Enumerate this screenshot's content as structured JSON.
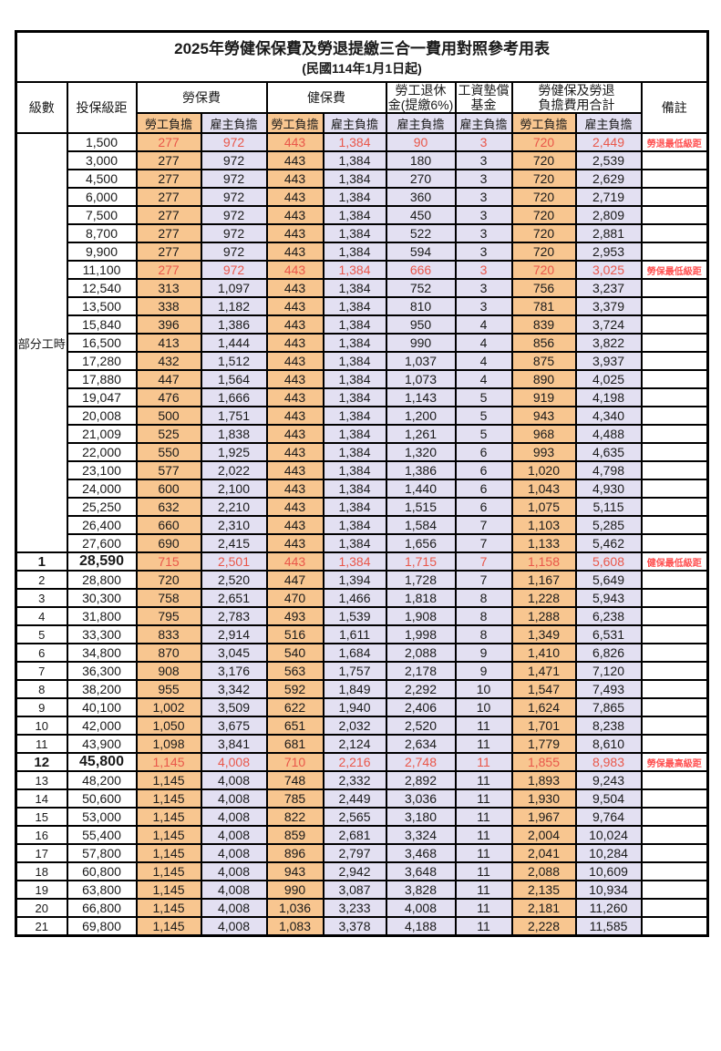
{
  "title": "2025年勞健保保費及勞退提繳三合一費用對照參考用表",
  "subtitle": "(民國114年1月1日起)",
  "colors": {
    "employee_burden_bg": "#F8C690",
    "employer_burden_bg": "#E3E0F2",
    "highlight_number_text": "#E9574A",
    "remark_text": "#FF5050",
    "border": "#000000"
  },
  "header": {
    "level": "級數",
    "bracket": "投保級距",
    "labor_insurance": "勞保費",
    "health_insurance": "健保費",
    "pension_line1": "勞工退休",
    "pension_line2": "金(提繳6%)",
    "wage_fund_line1": "工資墊償",
    "wage_fund_line2": "基金",
    "total_line1": "勞健保及勞退",
    "total_line2": "負擔費用合計",
    "remark": "備註",
    "employee": "勞工負擔",
    "employer": "雇主負擔"
  },
  "part_time": {
    "label": "部分工時",
    "rows": [
      {
        "bracket": "1,500",
        "values": [
          "277",
          "972",
          "443",
          "1,384",
          "90",
          "3",
          "720",
          "2,449"
        ],
        "remark": "勞退最低級距",
        "highlight": true
      },
      {
        "bracket": "3,000",
        "values": [
          "277",
          "972",
          "443",
          "1,384",
          "180",
          "3",
          "720",
          "2,539"
        ],
        "remark": ""
      },
      {
        "bracket": "4,500",
        "values": [
          "277",
          "972",
          "443",
          "1,384",
          "270",
          "3",
          "720",
          "2,629"
        ],
        "remark": ""
      },
      {
        "bracket": "6,000",
        "values": [
          "277",
          "972",
          "443",
          "1,384",
          "360",
          "3",
          "720",
          "2,719"
        ],
        "remark": ""
      },
      {
        "bracket": "7,500",
        "values": [
          "277",
          "972",
          "443",
          "1,384",
          "450",
          "3",
          "720",
          "2,809"
        ],
        "remark": ""
      },
      {
        "bracket": "8,700",
        "values": [
          "277",
          "972",
          "443",
          "1,384",
          "522",
          "3",
          "720",
          "2,881"
        ],
        "remark": ""
      },
      {
        "bracket": "9,900",
        "values": [
          "277",
          "972",
          "443",
          "1,384",
          "594",
          "3",
          "720",
          "2,953"
        ],
        "remark": ""
      },
      {
        "bracket": "11,100",
        "values": [
          "277",
          "972",
          "443",
          "1,384",
          "666",
          "3",
          "720",
          "3,025"
        ],
        "remark": "勞保最低級距",
        "highlight": true
      },
      {
        "bracket": "12,540",
        "values": [
          "313",
          "1,097",
          "443",
          "1,384",
          "752",
          "3",
          "756",
          "3,237"
        ],
        "remark": ""
      },
      {
        "bracket": "13,500",
        "values": [
          "338",
          "1,182",
          "443",
          "1,384",
          "810",
          "3",
          "781",
          "3,379"
        ],
        "remark": ""
      },
      {
        "bracket": "15,840",
        "values": [
          "396",
          "1,386",
          "443",
          "1,384",
          "950",
          "4",
          "839",
          "3,724"
        ],
        "remark": ""
      },
      {
        "bracket": "16,500",
        "values": [
          "413",
          "1,444",
          "443",
          "1,384",
          "990",
          "4",
          "856",
          "3,822"
        ],
        "remark": ""
      },
      {
        "bracket": "17,280",
        "values": [
          "432",
          "1,512",
          "443",
          "1,384",
          "1,037",
          "4",
          "875",
          "3,937"
        ],
        "remark": ""
      },
      {
        "bracket": "17,880",
        "values": [
          "447",
          "1,564",
          "443",
          "1,384",
          "1,073",
          "4",
          "890",
          "4,025"
        ],
        "remark": ""
      },
      {
        "bracket": "19,047",
        "values": [
          "476",
          "1,666",
          "443",
          "1,384",
          "1,143",
          "5",
          "919",
          "4,198"
        ],
        "remark": ""
      },
      {
        "bracket": "20,008",
        "values": [
          "500",
          "1,751",
          "443",
          "1,384",
          "1,200",
          "5",
          "943",
          "4,340"
        ],
        "remark": ""
      },
      {
        "bracket": "21,009",
        "values": [
          "525",
          "1,838",
          "443",
          "1,384",
          "1,261",
          "5",
          "968",
          "4,488"
        ],
        "remark": ""
      },
      {
        "bracket": "22,000",
        "values": [
          "550",
          "1,925",
          "443",
          "1,384",
          "1,320",
          "6",
          "993",
          "4,635"
        ],
        "remark": ""
      },
      {
        "bracket": "23,100",
        "values": [
          "577",
          "2,022",
          "443",
          "1,384",
          "1,386",
          "6",
          "1,020",
          "4,798"
        ],
        "remark": ""
      },
      {
        "bracket": "24,000",
        "values": [
          "600",
          "2,100",
          "443",
          "1,384",
          "1,440",
          "6",
          "1,043",
          "4,930"
        ],
        "remark": ""
      },
      {
        "bracket": "25,250",
        "values": [
          "632",
          "2,210",
          "443",
          "1,384",
          "1,515",
          "6",
          "1,075",
          "5,115"
        ],
        "remark": ""
      },
      {
        "bracket": "26,400",
        "values": [
          "660",
          "2,310",
          "443",
          "1,384",
          "1,584",
          "7",
          "1,103",
          "5,285"
        ],
        "remark": ""
      },
      {
        "bracket": "27,600",
        "values": [
          "690",
          "2,415",
          "443",
          "1,384",
          "1,656",
          "7",
          "1,133",
          "5,462"
        ],
        "remark": ""
      }
    ]
  },
  "levels": {
    "rows": [
      {
        "level": "1",
        "bracket": "28,590",
        "values": [
          "715",
          "2,501",
          "443",
          "1,384",
          "1,715",
          "7",
          "1,158",
          "5,608"
        ],
        "remark": "健保最低級距",
        "highlight": true,
        "emphasis": true
      },
      {
        "level": "2",
        "bracket": "28,800",
        "values": [
          "720",
          "2,520",
          "447",
          "1,394",
          "1,728",
          "7",
          "1,167",
          "5,649"
        ],
        "remark": ""
      },
      {
        "level": "3",
        "bracket": "30,300",
        "values": [
          "758",
          "2,651",
          "470",
          "1,466",
          "1,818",
          "8",
          "1,228",
          "5,943"
        ],
        "remark": ""
      },
      {
        "level": "4",
        "bracket": "31,800",
        "values": [
          "795",
          "2,783",
          "493",
          "1,539",
          "1,908",
          "8",
          "1,288",
          "6,238"
        ],
        "remark": ""
      },
      {
        "level": "5",
        "bracket": "33,300",
        "values": [
          "833",
          "2,914",
          "516",
          "1,611",
          "1,998",
          "8",
          "1,349",
          "6,531"
        ],
        "remark": ""
      },
      {
        "level": "6",
        "bracket": "34,800",
        "values": [
          "870",
          "3,045",
          "540",
          "1,684",
          "2,088",
          "9",
          "1,410",
          "6,826"
        ],
        "remark": ""
      },
      {
        "level": "7",
        "bracket": "36,300",
        "values": [
          "908",
          "3,176",
          "563",
          "1,757",
          "2,178",
          "9",
          "1,471",
          "7,120"
        ],
        "remark": ""
      },
      {
        "level": "8",
        "bracket": "38,200",
        "values": [
          "955",
          "3,342",
          "592",
          "1,849",
          "2,292",
          "10",
          "1,547",
          "7,493"
        ],
        "remark": ""
      },
      {
        "level": "9",
        "bracket": "40,100",
        "values": [
          "1,002",
          "3,509",
          "622",
          "1,940",
          "2,406",
          "10",
          "1,624",
          "7,865"
        ],
        "remark": ""
      },
      {
        "level": "10",
        "bracket": "42,000",
        "values": [
          "1,050",
          "3,675",
          "651",
          "2,032",
          "2,520",
          "11",
          "1,701",
          "8,238"
        ],
        "remark": ""
      },
      {
        "level": "11",
        "bracket": "43,900",
        "values": [
          "1,098",
          "3,841",
          "681",
          "2,124",
          "2,634",
          "11",
          "1,779",
          "8,610"
        ],
        "remark": ""
      },
      {
        "level": "12",
        "bracket": "45,800",
        "values": [
          "1,145",
          "4,008",
          "710",
          "2,216",
          "2,748",
          "11",
          "1,855",
          "8,983"
        ],
        "remark": "勞保最高級距",
        "highlight": true,
        "emphasis": true
      },
      {
        "level": "13",
        "bracket": "48,200",
        "values": [
          "1,145",
          "4,008",
          "748",
          "2,332",
          "2,892",
          "11",
          "1,893",
          "9,243"
        ],
        "remark": ""
      },
      {
        "level": "14",
        "bracket": "50,600",
        "values": [
          "1,145",
          "4,008",
          "785",
          "2,449",
          "3,036",
          "11",
          "1,930",
          "9,504"
        ],
        "remark": ""
      },
      {
        "level": "15",
        "bracket": "53,000",
        "values": [
          "1,145",
          "4,008",
          "822",
          "2,565",
          "3,180",
          "11",
          "1,967",
          "9,764"
        ],
        "remark": ""
      },
      {
        "level": "16",
        "bracket": "55,400",
        "values": [
          "1,145",
          "4,008",
          "859",
          "2,681",
          "3,324",
          "11",
          "2,004",
          "10,024"
        ],
        "remark": ""
      },
      {
        "level": "17",
        "bracket": "57,800",
        "values": [
          "1,145",
          "4,008",
          "896",
          "2,797",
          "3,468",
          "11",
          "2,041",
          "10,284"
        ],
        "remark": ""
      },
      {
        "level": "18",
        "bracket": "60,800",
        "values": [
          "1,145",
          "4,008",
          "943",
          "2,942",
          "3,648",
          "11",
          "2,088",
          "10,609"
        ],
        "remark": ""
      },
      {
        "level": "19",
        "bracket": "63,800",
        "values": [
          "1,145",
          "4,008",
          "990",
          "3,087",
          "3,828",
          "11",
          "2,135",
          "10,934"
        ],
        "remark": ""
      },
      {
        "level": "20",
        "bracket": "66,800",
        "values": [
          "1,145",
          "4,008",
          "1,036",
          "3,233",
          "4,008",
          "11",
          "2,181",
          "11,260"
        ],
        "remark": ""
      },
      {
        "level": "21",
        "bracket": "69,800",
        "values": [
          "1,145",
          "4,008",
          "1,083",
          "3,378",
          "4,188",
          "11",
          "2,228",
          "11,585"
        ],
        "remark": ""
      }
    ]
  }
}
